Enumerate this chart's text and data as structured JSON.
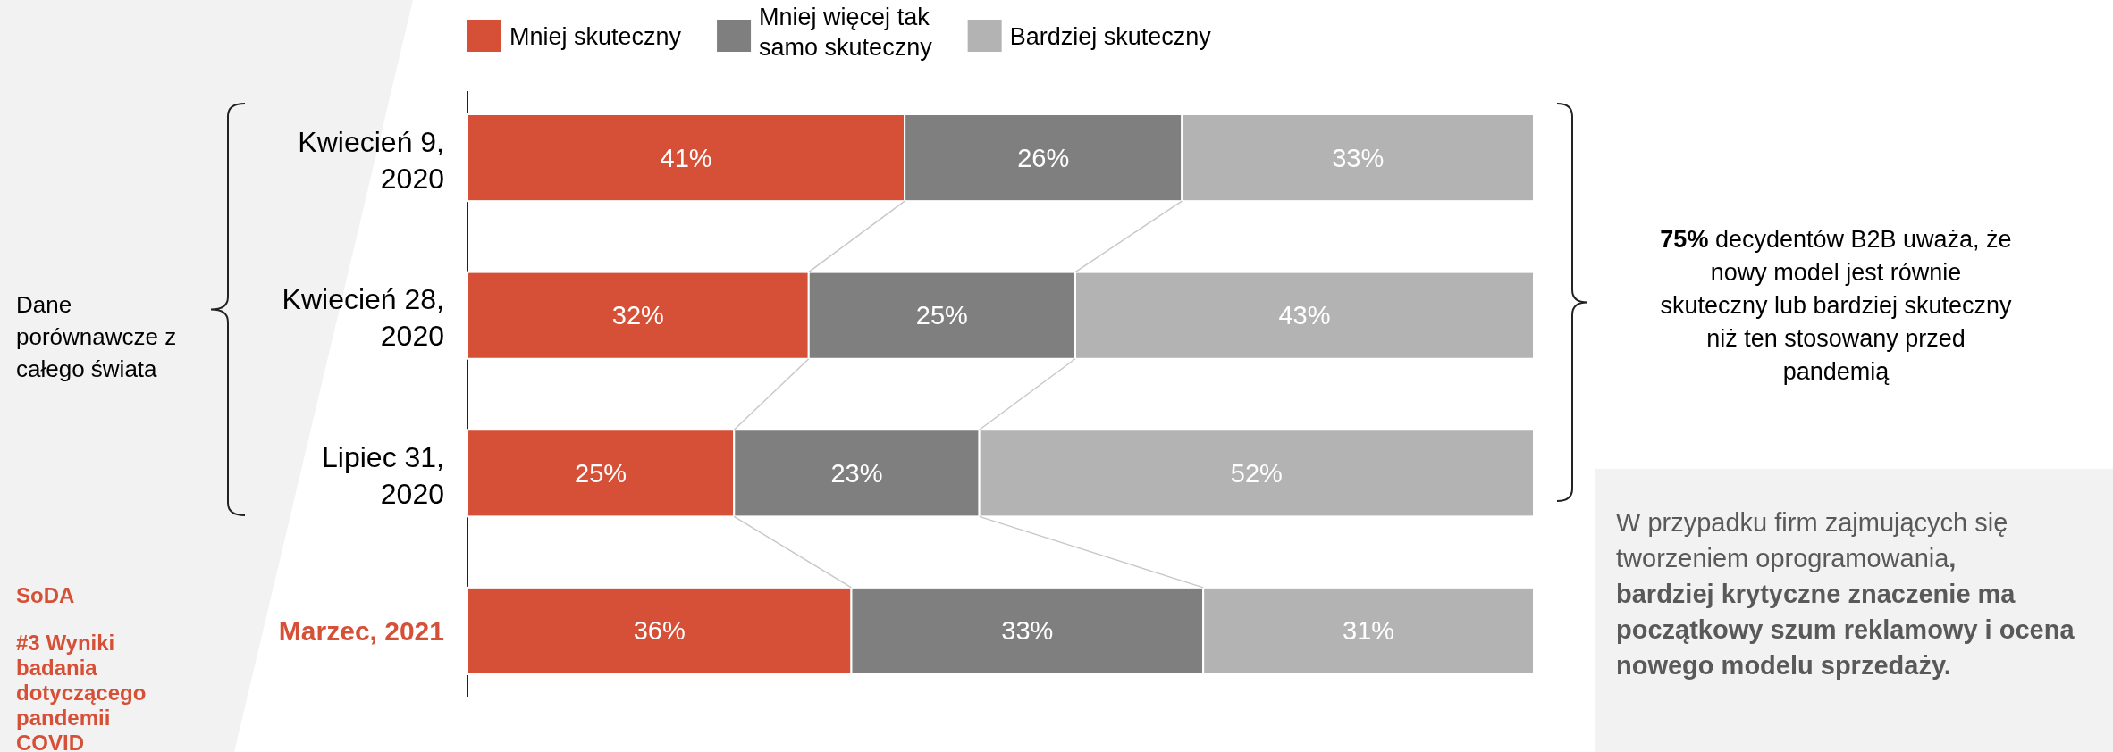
{
  "chart_data": {
    "type": "bar",
    "orientation": "horizontal",
    "stacked": true,
    "legend": "top",
    "tick_labels": "y",
    "categories": [
      "Kwiecień 9, 2020",
      "Kwiecień 28, 2020",
      "Lipiec 31, 2020",
      "Marzec, 2021"
    ],
    "series": [
      {
        "name": "Mniej skuteczny",
        "color": "#d65037",
        "values": [
          41,
          32,
          25,
          36
        ],
        "value_labels": [
          "41%",
          "32%",
          "25%",
          "36%"
        ]
      },
      {
        "name": "Mniej więcej tak samo skuteczny",
        "color": "#7f7f7f",
        "values": [
          26,
          25,
          23,
          33
        ],
        "value_labels": [
          "26%",
          "25%",
          "23%",
          "33%"
        ]
      },
      {
        "name": "Bardziej skuteczny",
        "color": "#b3b3b3",
        "values": [
          33,
          43,
          52,
          31
        ],
        "value_labels": [
          "33%",
          "43%",
          "52%",
          "31%"
        ]
      }
    ],
    "annotations": [
      "Dane porównawcze z całego świata",
      "75% decydentów B2B uważa, że nowy model jest równie skuteczny lub bardziej skuteczny niż ten stosowany przed pandemią",
      "W przypadku firm zajmujących się tworzeniem oprogramowania, bardziej krytyczne znaczenie ma początkowy szum reklamowy i ocena nowego modelu sprzedaży.",
      "SoDA",
      "#3 Wyniki badania dotyczącego pandemii COVID"
    ]
  }
}
